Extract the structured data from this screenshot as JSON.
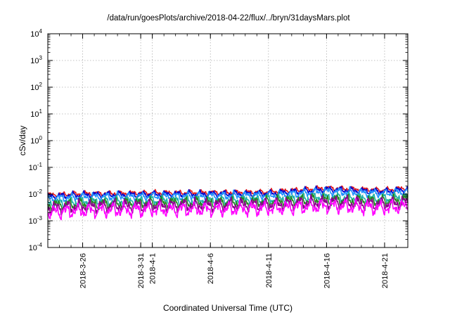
{
  "chart_data": {
    "type": "line",
    "title": "/data/run/goesPlots/archive/2018-04-22/flux/../bryn/31daysMars.plot",
    "xlabel": "Coordinated Universal Time (UTC)",
    "ylabel": "cSv/day",
    "yscale": "log",
    "ylim": [
      0.0001,
      10000
    ],
    "y_ticks": [
      {
        "base": "10",
        "exp": "-4",
        "value": 0.0001
      },
      {
        "base": "10",
        "exp": "-3",
        "value": 0.001
      },
      {
        "base": "10",
        "exp": "-2",
        "value": 0.01
      },
      {
        "base": "10",
        "exp": "-1",
        "value": 0.1
      },
      {
        "base": "10",
        "exp": "0",
        "value": 1
      },
      {
        "base": "10",
        "exp": "1",
        "value": 10
      },
      {
        "base": "10",
        "exp": "2",
        "value": 100
      },
      {
        "base": "10",
        "exp": "3",
        "value": 1000
      },
      {
        "base": "10",
        "exp": "4",
        "value": 10000
      }
    ],
    "xlim": [
      "2018-03-23",
      "2018-04-23"
    ],
    "x_ticks": [
      {
        "label": "2018-3-26",
        "date": "2018-03-26"
      },
      {
        "label": "2018-3-31",
        "date": "2018-03-31"
      },
      {
        "label": "2018-4-1",
        "date": "2018-04-01"
      },
      {
        "label": "2018-4-6",
        "date": "2018-04-06"
      },
      {
        "label": "2018-4-11",
        "date": "2018-04-11"
      },
      {
        "label": "2018-4-16",
        "date": "2018-04-16"
      },
      {
        "label": "2018-4-21",
        "date": "2018-04-21"
      }
    ],
    "grid": true,
    "series": [
      {
        "color": "#e41a1c",
        "x": [
          "2018-03-23",
          "2018-03-26",
          "2018-03-31",
          "2018-04-06",
          "2018-04-11",
          "2018-04-16",
          "2018-04-21",
          "2018-04-23"
        ],
        "y": [
          0.0092,
          0.0105,
          0.011,
          0.0115,
          0.012,
          0.017,
          0.014,
          0.017
        ]
      },
      {
        "color": "#0000cc",
        "x": [
          "2018-03-23",
          "2018-03-26",
          "2018-03-31",
          "2018-04-06",
          "2018-04-11",
          "2018-04-16",
          "2018-04-21",
          "2018-04-23"
        ],
        "y": [
          0.0082,
          0.0094,
          0.0098,
          0.0102,
          0.0106,
          0.015,
          0.0125,
          0.015
        ]
      },
      {
        "color": "#1e90ff",
        "x": [
          "2018-03-23",
          "2018-03-26",
          "2018-03-31",
          "2018-04-06",
          "2018-04-11",
          "2018-04-16",
          "2018-04-21",
          "2018-04-23"
        ],
        "y": [
          0.0068,
          0.0078,
          0.0082,
          0.0086,
          0.009,
          0.0125,
          0.0105,
          0.0125
        ]
      },
      {
        "color": "#20b2aa",
        "x": [
          "2018-03-23",
          "2018-03-26",
          "2018-03-31",
          "2018-04-06",
          "2018-04-11",
          "2018-04-16",
          "2018-04-21",
          "2018-04-23"
        ],
        "y": [
          0.0046,
          0.0052,
          0.0056,
          0.0058,
          0.0062,
          0.0078,
          0.0066,
          0.0078
        ]
      },
      {
        "color": "#228b22",
        "x": [
          "2018-03-23",
          "2018-03-26",
          "2018-03-31",
          "2018-04-06",
          "2018-04-11",
          "2018-04-16",
          "2018-04-21",
          "2018-04-23"
        ],
        "y": [
          0.0037,
          0.0043,
          0.0046,
          0.0048,
          0.0051,
          0.0063,
          0.0054,
          0.0063
        ]
      },
      {
        "color": "#8b008b",
        "x": [
          "2018-03-23",
          "2018-03-26",
          "2018-03-31",
          "2018-04-06",
          "2018-04-11",
          "2018-04-16",
          "2018-04-21",
          "2018-04-23"
        ],
        "y": [
          0.003,
          0.0035,
          0.0037,
          0.0039,
          0.0041,
          0.005,
          0.0043,
          0.005
        ]
      },
      {
        "color": "#ff00ff",
        "x": [
          "2018-03-23",
          "2018-03-26",
          "2018-03-31",
          "2018-04-06",
          "2018-04-11",
          "2018-04-16",
          "2018-04-21",
          "2018-04-23"
        ],
        "y": [
          0.0021,
          0.0024,
          0.0026,
          0.0027,
          0.0029,
          0.0036,
          0.003,
          0.0036
        ]
      }
    ]
  }
}
